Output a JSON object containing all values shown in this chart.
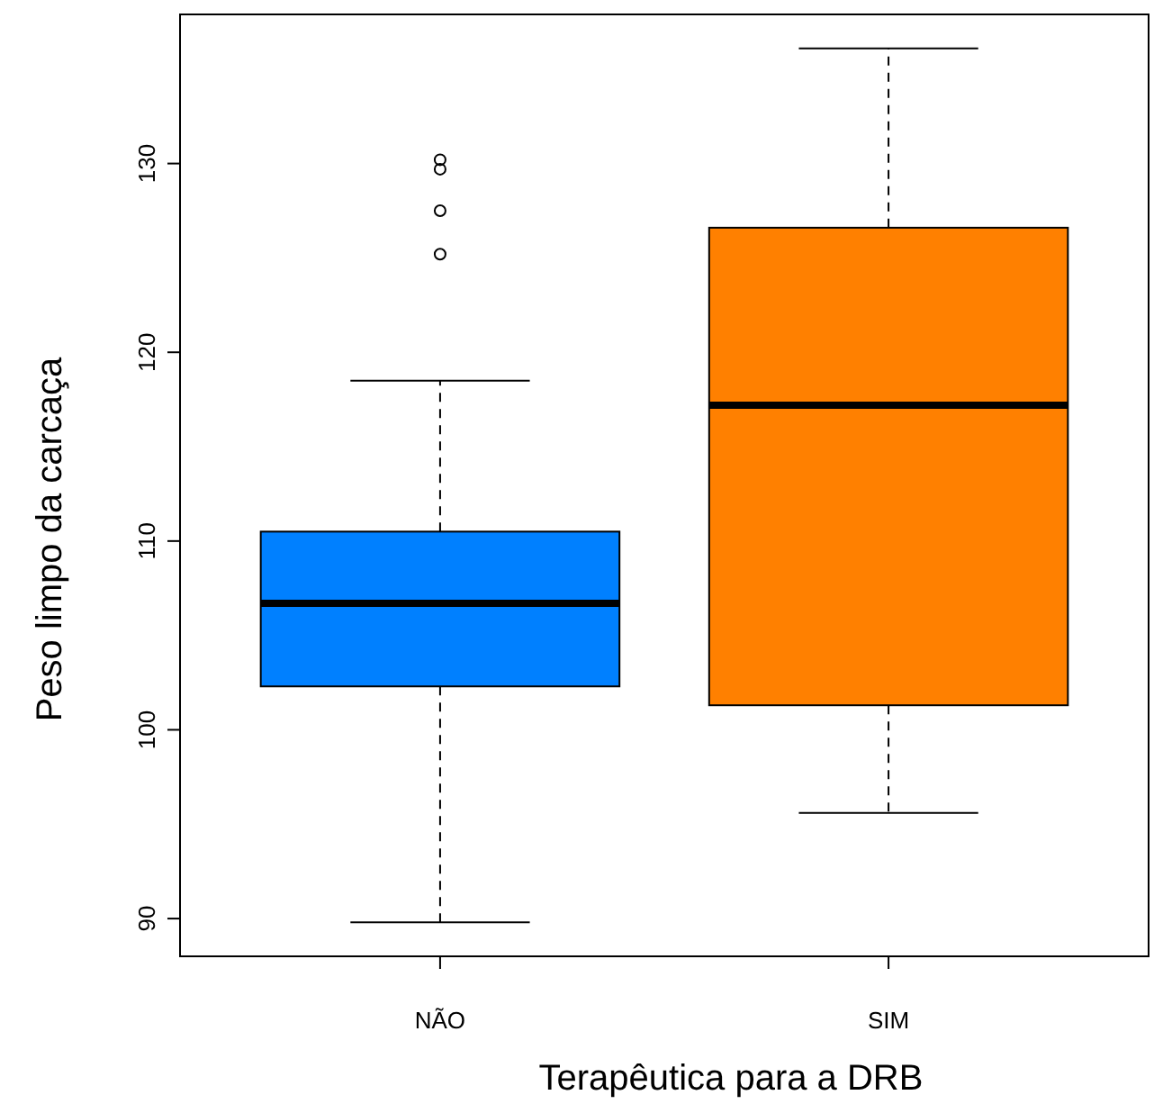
{
  "chart_data": {
    "type": "box",
    "xlabel": "Terapêutica para a DRB",
    "ylabel": "Peso limpo da carcaça",
    "categories": [
      "NÃO",
      "SIM"
    ],
    "colors": [
      "#0080ff",
      "#ff8000"
    ],
    "boxes": [
      {
        "low": 89.8,
        "q1": 102.3,
        "median": 106.7,
        "q3": 110.5,
        "high": 118.5,
        "outliers": [
          130.2,
          129.7,
          127.5,
          125.2
        ]
      },
      {
        "low": 95.6,
        "q1": 101.3,
        "median": 117.2,
        "q3": 126.6,
        "high": 136.1
      }
    ],
    "ylim": [
      88,
      137.9
    ],
    "yticks": [
      90,
      100,
      110,
      120,
      130
    ]
  }
}
